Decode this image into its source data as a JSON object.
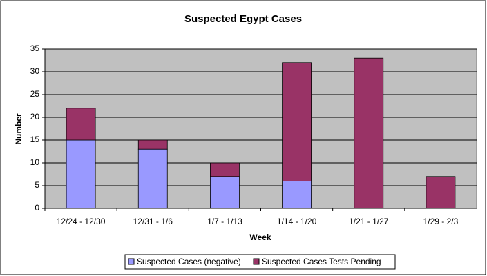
{
  "chart_data": {
    "type": "stacked-bar",
    "title": "Suspected Egypt Cases",
    "x_label": "Week",
    "y_label": "Number",
    "categories": [
      "12/24 - 12/30",
      "12/31 - 1/6",
      "1/7 - 1/13",
      "1/14 - 1/20",
      "1/21 - 1/27",
      "1/29 - 2/3"
    ],
    "series": [
      {
        "name": "Suspected Cases (negative)",
        "color": "#9999ff",
        "values": [
          15,
          13,
          7,
          6,
          0,
          0
        ]
      },
      {
        "name": "Suspected Cases Tests Pending",
        "color": "#993366",
        "values": [
          7,
          2,
          3,
          26,
          33,
          7
        ]
      }
    ],
    "ylim": [
      0,
      35
    ],
    "yticks": [
      0,
      5,
      10,
      15,
      20,
      25,
      30,
      35
    ],
    "grid": true,
    "legend": "bottom"
  }
}
